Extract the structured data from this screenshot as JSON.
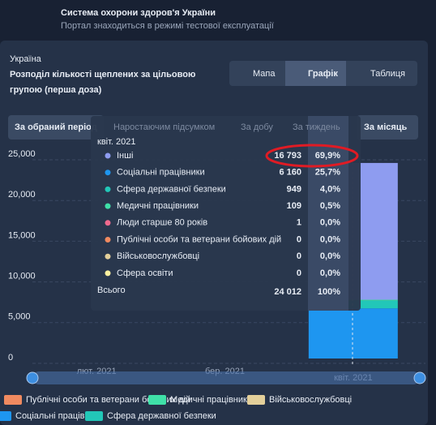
{
  "header": {
    "title": "Система охорони здоров'я України",
    "subtitle": "Портал знаходиться в режимі тестової експлуатації"
  },
  "panel": {
    "region": "Україна",
    "title_lines": [
      "Розподіл кількості щеплених за цільовою",
      "групою (перша доза)"
    ],
    "tabs": [
      "Мапа",
      "Графік",
      "Таблиця"
    ],
    "periods": [
      "За обраний період",
      "Наростаючим підсумком",
      "За добу",
      "За тиждень",
      "За місяць"
    ]
  },
  "tooltip": {
    "shares": [
      "69,9%",
      "25,7%",
      "4,0%",
      "0,5%",
      "0,0%",
      "0,0%",
      "0,0%",
      "0,0%"
    ],
    "total_label": "Всього",
    "total": "24 012",
    "total_share": "100%"
  },
  "chart_data": {
    "type": "stacked_bar",
    "categories": [
      "лют. 2021",
      "бер. 2021",
      "квіт. 2021"
    ],
    "series": [
      {
        "name": "Інші",
        "color": "#8e9cf0",
        "values": [
          null,
          null,
          16793
        ],
        "value_labels": [
          null,
          null,
          "16 793"
        ]
      },
      {
        "name": "Соціальні працівники",
        "color": "#1e96f0",
        "values": [
          null,
          null,
          6160
        ],
        "value_labels": [
          null,
          null,
          "6 160"
        ]
      },
      {
        "name": "Сфера державної безпеки",
        "color": "#22c7b8",
        "values": [
          null,
          null,
          949
        ]
      },
      {
        "name": "Медичні працівники",
        "color": "#3fe0a8",
        "values": [
          null,
          null,
          109
        ]
      },
      {
        "name": "Люди старше 80 років",
        "color": "#f06a8e",
        "values": [
          null,
          null,
          1
        ]
      },
      {
        "name": "Публічні особи та ветерани бойових дій",
        "color": "#f08a60",
        "values": [
          null,
          null,
          0
        ]
      },
      {
        "name": "Військовослужбовці",
        "color": "#e3cf9a",
        "values": [
          null,
          null,
          0
        ]
      },
      {
        "name": "Сфера освіти",
        "color": "#fbf0a0",
        "values": [
          null,
          null,
          0
        ]
      }
    ],
    "ylim": [
      0,
      25000
    ],
    "yticks": [
      {
        "value": 0,
        "label": "0"
      },
      {
        "value": 5000,
        "label": "5,000"
      },
      {
        "value": 10000,
        "label": "10,000"
      },
      {
        "value": 15000,
        "label": "15,000"
      },
      {
        "value": 20000,
        "label": "20,000"
      },
      {
        "value": 25000,
        "label": "25,000"
      }
    ],
    "grid": true
  }
}
